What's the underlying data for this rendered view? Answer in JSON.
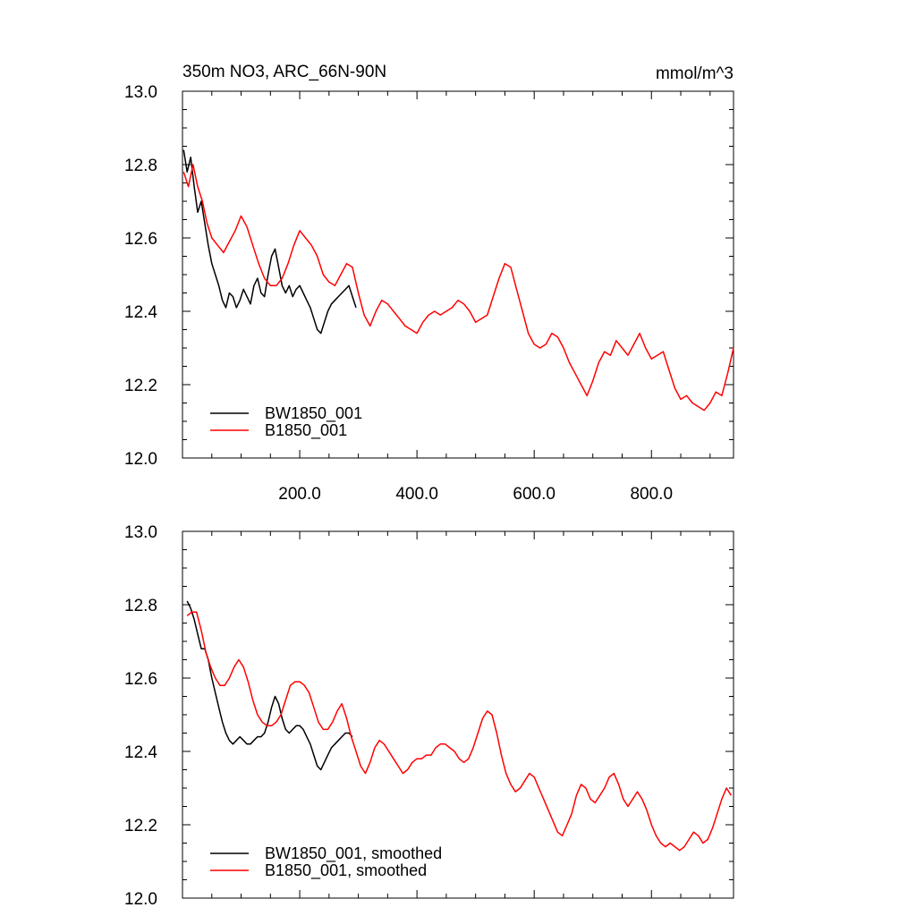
{
  "chart_data": [
    {
      "type": "line",
      "title": "350m NO3, ARC_66N-90N",
      "units": "mmol/m^3",
      "xlim": [
        0,
        940
      ],
      "ylim": [
        12.0,
        13.0
      ],
      "x_tick_labels": [
        "200.0",
        "400.0",
        "600.0",
        "800.0"
      ],
      "y_tick_labels": [
        "12.0",
        "12.2",
        "12.4",
        "12.6",
        "12.8",
        "13.0"
      ],
      "legend_position": "bottom-left",
      "series": [
        {
          "name": "BW1850_001",
          "color": "#000000",
          "x": [
            2,
            8,
            14,
            20,
            26,
            32,
            38,
            44,
            50,
            56,
            62,
            68,
            74,
            80,
            86,
            92,
            98,
            104,
            110,
            116,
            122,
            128,
            134,
            140,
            146,
            152,
            158,
            164,
            170,
            176,
            182,
            188,
            194,
            200,
            206,
            212,
            218,
            224,
            230,
            236,
            242,
            248,
            254,
            260,
            266,
            272,
            278,
            284,
            290,
            296
          ],
          "y": [
            12.84,
            12.78,
            12.82,
            12.74,
            12.67,
            12.7,
            12.64,
            12.58,
            12.53,
            12.5,
            12.47,
            12.43,
            12.41,
            12.45,
            12.44,
            12.41,
            12.43,
            12.46,
            12.44,
            12.42,
            12.47,
            12.49,
            12.45,
            12.44,
            12.5,
            12.55,
            12.57,
            12.52,
            12.47,
            12.45,
            12.47,
            12.44,
            12.46,
            12.47,
            12.45,
            12.43,
            12.41,
            12.38,
            12.35,
            12.34,
            12.37,
            12.4,
            12.42,
            12.43,
            12.44,
            12.45,
            12.46,
            12.47,
            12.44,
            12.41
          ]
        },
        {
          "name": "B1850_001",
          "color": "#ff0000",
          "x": [
            2,
            10,
            18,
            26,
            34,
            42,
            50,
            60,
            70,
            80,
            90,
            100,
            110,
            120,
            130,
            140,
            150,
            160,
            170,
            180,
            190,
            200,
            210,
            220,
            230,
            240,
            250,
            260,
            270,
            280,
            290,
            300,
            310,
            320,
            330,
            340,
            350,
            360,
            370,
            380,
            390,
            400,
            410,
            420,
            430,
            440,
            450,
            460,
            470,
            480,
            490,
            500,
            510,
            520,
            530,
            540,
            550,
            560,
            570,
            580,
            590,
            600,
            610,
            620,
            630,
            640,
            650,
            660,
            670,
            680,
            690,
            700,
            710,
            720,
            730,
            740,
            750,
            760,
            770,
            780,
            790,
            800,
            810,
            820,
            830,
            840,
            850,
            860,
            870,
            880,
            890,
            900,
            910,
            920,
            930,
            940
          ],
          "y": [
            12.78,
            12.74,
            12.8,
            12.74,
            12.7,
            12.64,
            12.6,
            12.58,
            12.56,
            12.59,
            12.62,
            12.66,
            12.63,
            12.58,
            12.53,
            12.49,
            12.47,
            12.47,
            12.49,
            12.53,
            12.58,
            12.62,
            12.6,
            12.58,
            12.55,
            12.5,
            12.48,
            12.47,
            12.5,
            12.53,
            12.52,
            12.45,
            12.39,
            12.36,
            12.4,
            12.43,
            12.42,
            12.4,
            12.38,
            12.36,
            12.35,
            12.34,
            12.37,
            12.39,
            12.4,
            12.39,
            12.4,
            12.41,
            12.43,
            12.42,
            12.4,
            12.37,
            12.38,
            12.39,
            12.44,
            12.49,
            12.53,
            12.52,
            12.46,
            12.4,
            12.34,
            12.31,
            12.3,
            12.31,
            12.34,
            12.33,
            12.3,
            12.26,
            12.23,
            12.2,
            12.17,
            12.21,
            12.26,
            12.29,
            12.28,
            12.32,
            12.3,
            12.28,
            12.31,
            12.34,
            12.3,
            12.27,
            12.28,
            12.29,
            12.24,
            12.19,
            12.16,
            12.17,
            12.15,
            12.14,
            12.13,
            12.15,
            12.18,
            12.17,
            12.23,
            12.3
          ]
        }
      ]
    },
    {
      "type": "line",
      "title": "",
      "xlim": [
        0,
        940
      ],
      "ylim": [
        12.0,
        13.0
      ],
      "y_tick_labels": [
        "12.0",
        "12.2",
        "12.4",
        "12.6",
        "12.8",
        "13.0"
      ],
      "legend_position": "bottom-left",
      "series": [
        {
          "name": "BW1850_001, smoothed",
          "color": "#000000",
          "x": [
            8,
            14,
            20,
            26,
            32,
            38,
            44,
            50,
            56,
            62,
            68,
            74,
            80,
            86,
            92,
            98,
            104,
            110,
            116,
            122,
            128,
            134,
            140,
            146,
            152,
            158,
            164,
            170,
            176,
            182,
            188,
            194,
            200,
            206,
            212,
            218,
            224,
            230,
            236,
            242,
            248,
            254,
            260,
            266,
            272,
            278,
            284,
            290
          ],
          "y": [
            12.81,
            12.79,
            12.76,
            12.72,
            12.68,
            12.68,
            12.65,
            12.6,
            12.56,
            12.52,
            12.48,
            12.45,
            12.43,
            12.42,
            12.43,
            12.44,
            12.43,
            12.42,
            12.42,
            12.43,
            12.44,
            12.44,
            12.45,
            12.48,
            12.52,
            12.55,
            12.53,
            12.49,
            12.46,
            12.45,
            12.46,
            12.47,
            12.47,
            12.46,
            12.44,
            12.42,
            12.39,
            12.36,
            12.35,
            12.37,
            12.39,
            12.41,
            12.42,
            12.43,
            12.44,
            12.45,
            12.45,
            12.44
          ]
        },
        {
          "name": "B1850_001, smoothed",
          "color": "#ff0000",
          "x": [
            8,
            16,
            24,
            32,
            40,
            48,
            56,
            64,
            72,
            80,
            88,
            96,
            104,
            112,
            120,
            128,
            136,
            144,
            152,
            160,
            168,
            176,
            184,
            192,
            200,
            208,
            216,
            224,
            232,
            240,
            248,
            256,
            264,
            272,
            280,
            288,
            296,
            304,
            312,
            320,
            328,
            336,
            344,
            352,
            360,
            368,
            376,
            384,
            392,
            400,
            408,
            416,
            424,
            432,
            440,
            448,
            456,
            464,
            472,
            480,
            488,
            496,
            504,
            512,
            520,
            528,
            536,
            544,
            552,
            560,
            568,
            576,
            584,
            592,
            600,
            608,
            616,
            624,
            632,
            640,
            648,
            656,
            664,
            672,
            680,
            688,
            696,
            704,
            712,
            720,
            728,
            736,
            744,
            752,
            760,
            768,
            776,
            784,
            792,
            800,
            808,
            816,
            824,
            832,
            840,
            848,
            856,
            864,
            872,
            880,
            888,
            896,
            904,
            912,
            920,
            928,
            936
          ],
          "y": [
            12.77,
            12.78,
            12.78,
            12.73,
            12.67,
            12.63,
            12.6,
            12.58,
            12.58,
            12.6,
            12.63,
            12.65,
            12.63,
            12.59,
            12.54,
            12.5,
            12.48,
            12.47,
            12.47,
            12.48,
            12.5,
            12.54,
            12.58,
            12.59,
            12.59,
            12.58,
            12.56,
            12.52,
            12.48,
            12.46,
            12.46,
            12.48,
            12.51,
            12.53,
            12.49,
            12.44,
            12.4,
            12.36,
            12.34,
            12.37,
            12.41,
            12.43,
            12.42,
            12.4,
            12.38,
            12.36,
            12.34,
            12.35,
            12.37,
            12.38,
            12.38,
            12.39,
            12.39,
            12.41,
            12.42,
            12.42,
            12.41,
            12.4,
            12.38,
            12.37,
            12.38,
            12.41,
            12.45,
            12.49,
            12.51,
            12.5,
            12.45,
            12.39,
            12.34,
            12.31,
            12.29,
            12.3,
            12.32,
            12.34,
            12.33,
            12.3,
            12.27,
            12.24,
            12.21,
            12.18,
            12.17,
            12.2,
            12.23,
            12.28,
            12.31,
            12.3,
            12.27,
            12.26,
            12.28,
            12.3,
            12.33,
            12.34,
            12.31,
            12.27,
            12.25,
            12.27,
            12.29,
            12.27,
            12.24,
            12.2,
            12.17,
            12.15,
            12.14,
            12.15,
            12.14,
            12.13,
            12.14,
            12.16,
            12.18,
            12.17,
            12.15,
            12.16,
            12.19,
            12.23,
            12.27,
            12.3,
            12.28
          ]
        }
      ]
    }
  ]
}
